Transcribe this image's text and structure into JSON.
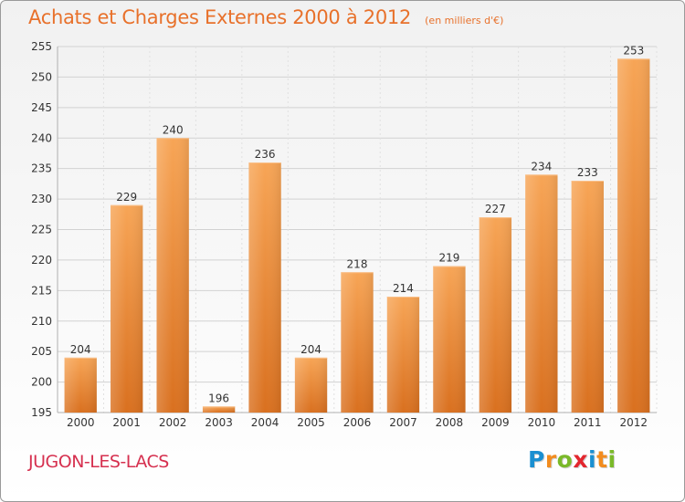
{
  "header": {
    "title": "Achats et Charges Externes 2000 à 2012",
    "subtitle": "(en milliers d'€)"
  },
  "footer": {
    "city": "JUGON-LES-LACS",
    "logo": [
      "P",
      "r",
      "o",
      "x",
      "i",
      "t",
      "i"
    ],
    "logo_colors": [
      "#1a8fd1",
      "#f28c1f",
      "#7ab929",
      "#e3262e",
      "#1a8fd1",
      "#f28c1f",
      "#7ab929"
    ]
  },
  "chart_data": {
    "type": "bar",
    "title": "Achats et Charges Externes 2000 à 2012",
    "subtitle": "(en milliers d'€)",
    "categories": [
      "2000",
      "2001",
      "2002",
      "2003",
      "2004",
      "2005",
      "2006",
      "2007",
      "2008",
      "2009",
      "2010",
      "2011",
      "2012"
    ],
    "values": [
      204,
      229,
      240,
      196,
      236,
      204,
      218,
      214,
      219,
      227,
      234,
      233,
      253
    ],
    "ylim": [
      195,
      255
    ],
    "yticks": [
      195,
      200,
      205,
      210,
      215,
      220,
      225,
      230,
      235,
      240,
      245,
      250,
      255
    ],
    "xlabel": "",
    "ylabel": "",
    "grid": true,
    "bar_color": "#f08a34"
  }
}
